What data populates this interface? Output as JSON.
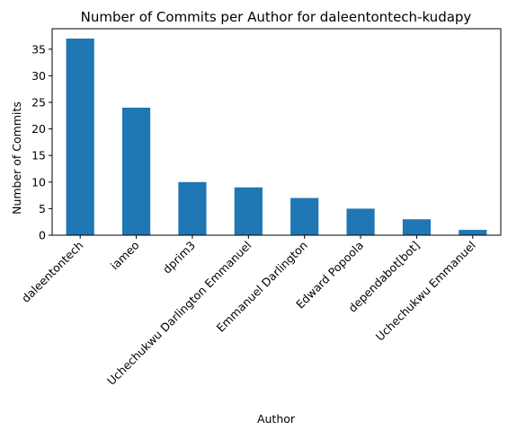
{
  "chart_data": {
    "type": "bar",
    "title": "Number of Commits per Author for daleentontech-kudapy",
    "xlabel": "Author",
    "ylabel": "Number of Commits",
    "categories": [
      "daleentontech",
      "iameo",
      "dprim3",
      "Uchechukwu Darlington Emmanuel",
      "Emmanuel Darlington",
      "Edward Popoola",
      "dependabot[bot]",
      "Uchechukwu Emmanuel"
    ],
    "values": [
      37,
      24,
      10,
      9,
      7,
      5,
      3,
      1
    ],
    "yticks": [
      "0",
      "5",
      "10",
      "15",
      "20",
      "25",
      "30",
      "35"
    ],
    "ylim": [
      0,
      38.85
    ],
    "grid": false,
    "bar_color": "#1f77b4"
  }
}
